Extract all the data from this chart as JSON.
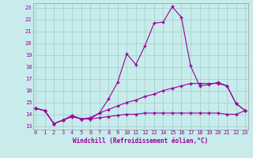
{
  "background_color": "#c8ecec",
  "line_color": "#990099",
  "grid_color": "#a0cccc",
  "x_ticks": [
    0,
    1,
    2,
    3,
    4,
    5,
    6,
    7,
    8,
    9,
    10,
    11,
    12,
    13,
    14,
    15,
    16,
    17,
    18,
    19,
    20,
    21,
    22,
    23
  ],
  "y_ticks": [
    13,
    14,
    15,
    16,
    17,
    18,
    19,
    20,
    21,
    22,
    23
  ],
  "xlim": [
    -0.3,
    23.3
  ],
  "ylim": [
    12.7,
    23.4
  ],
  "xlabel": "Windchill (Refroidissement éolien,°C)",
  "line1_x": [
    0,
    1,
    2,
    3,
    4,
    5,
    6,
    7,
    8,
    9,
    10,
    11,
    12,
    13,
    14,
    15,
    16,
    17,
    18,
    19,
    20,
    21,
    22,
    23
  ],
  "line1_y": [
    14.5,
    14.3,
    13.2,
    13.5,
    13.8,
    13.6,
    13.6,
    14.1,
    15.3,
    16.7,
    19.1,
    18.2,
    19.8,
    21.7,
    21.8,
    23.1,
    22.2,
    18.1,
    16.4,
    16.5,
    16.7,
    16.4,
    14.9,
    14.3
  ],
  "line2_x": [
    0,
    1,
    2,
    3,
    4,
    5,
    6,
    7,
    8,
    9,
    10,
    11,
    12,
    13,
    14,
    15,
    16,
    17,
    18,
    19,
    20,
    21,
    22,
    23
  ],
  "line2_y": [
    14.5,
    14.3,
    13.2,
    13.5,
    13.9,
    13.6,
    13.7,
    14.1,
    14.4,
    14.7,
    15.0,
    15.2,
    15.5,
    15.7,
    16.0,
    16.2,
    16.4,
    16.6,
    16.6,
    16.6,
    16.6,
    16.4,
    14.9,
    14.3
  ],
  "line3_x": [
    0,
    1,
    2,
    3,
    4,
    5,
    6,
    7,
    8,
    9,
    10,
    11,
    12,
    13,
    14,
    15,
    16,
    17,
    18,
    19,
    20,
    21,
    22,
    23
  ],
  "line3_y": [
    14.5,
    14.3,
    13.2,
    13.5,
    13.8,
    13.6,
    13.6,
    13.7,
    13.8,
    13.9,
    14.0,
    14.0,
    14.1,
    14.1,
    14.1,
    14.1,
    14.1,
    14.1,
    14.1,
    14.1,
    14.1,
    14.0,
    14.0,
    14.3
  ],
  "tick_fontsize": 5.0,
  "xlabel_fontsize": 5.5,
  "marker_size": 3,
  "linewidth": 0.8
}
